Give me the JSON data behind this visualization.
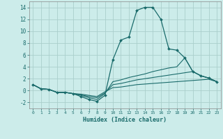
{
  "xlabel": "Humidex (Indice chaleur)",
  "background_color": "#ccecea",
  "grid_color": "#aacfcc",
  "line_color": "#1a6b6b",
  "xlim": [
    -0.5,
    23.5
  ],
  "ylim": [
    -3.0,
    15.0
  ],
  "x_ticks": [
    0,
    1,
    2,
    3,
    4,
    5,
    6,
    7,
    8,
    9,
    10,
    11,
    12,
    13,
    14,
    15,
    16,
    17,
    18,
    19,
    20,
    21,
    22,
    23
  ],
  "y_ticks": [
    -2,
    0,
    2,
    4,
    6,
    8,
    10,
    12,
    14
  ],
  "line1_x": [
    0,
    1,
    2,
    3,
    4,
    5,
    6,
    7,
    8,
    9,
    10,
    11,
    12,
    13,
    14,
    15,
    16,
    17,
    18,
    19,
    20,
    21,
    22,
    23
  ],
  "line1_y": [
    1.0,
    0.3,
    0.2,
    -0.3,
    -0.3,
    -0.5,
    -1.0,
    -1.5,
    -1.8,
    -0.8,
    5.2,
    8.5,
    9.0,
    13.5,
    14.0,
    14.0,
    12.0,
    7.0,
    6.8,
    5.5,
    3.2,
    2.5,
    2.1,
    1.5
  ],
  "line2_x": [
    0,
    1,
    2,
    3,
    4,
    5,
    6,
    7,
    8,
    9,
    10,
    11,
    12,
    13,
    14,
    15,
    16,
    17,
    18,
    19,
    20,
    21,
    22,
    23
  ],
  "line2_y": [
    1.0,
    0.3,
    0.2,
    -0.3,
    -0.3,
    -0.5,
    -0.8,
    -1.2,
    -1.5,
    -0.5,
    1.5,
    1.8,
    2.2,
    2.5,
    2.8,
    3.2,
    3.5,
    3.8,
    4.0,
    5.5,
    3.2,
    2.5,
    2.1,
    1.5
  ],
  "line3_x": [
    0,
    1,
    2,
    3,
    4,
    5,
    6,
    7,
    8,
    9,
    10,
    11,
    12,
    13,
    14,
    15,
    16,
    17,
    18,
    19,
    20,
    21,
    22,
    23
  ],
  "line3_y": [
    1.0,
    0.3,
    0.2,
    -0.3,
    -0.3,
    -0.5,
    -0.7,
    -1.0,
    -1.2,
    -0.4,
    1.0,
    1.2,
    1.5,
    1.8,
    2.0,
    2.2,
    2.4,
    2.6,
    2.8,
    3.0,
    3.2,
    2.5,
    2.1,
    1.5
  ],
  "line4_x": [
    0,
    1,
    2,
    3,
    4,
    5,
    6,
    7,
    8,
    9,
    10,
    11,
    12,
    13,
    14,
    15,
    16,
    17,
    18,
    19,
    20,
    21,
    22,
    23
  ],
  "line4_y": [
    1.0,
    0.3,
    0.2,
    -0.3,
    -0.3,
    -0.5,
    -0.6,
    -0.8,
    -1.0,
    -0.2,
    0.5,
    0.6,
    0.8,
    1.0,
    1.1,
    1.2,
    1.3,
    1.4,
    1.5,
    1.6,
    1.7,
    1.8,
    1.9,
    1.5
  ]
}
